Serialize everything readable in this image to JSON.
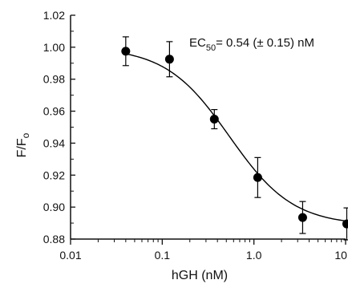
{
  "chart_data": {
    "type": "scatter",
    "xlabel": "hGH (nM)",
    "ylabel": "F/F",
    "ylabel_subscript": "o",
    "x_scale": "log",
    "xlim": [
      0.01,
      10
    ],
    "ylim": [
      0.88,
      1.02
    ],
    "x_ticks": [
      {
        "value": 0.01,
        "label": "0.01"
      },
      {
        "value": 0.1,
        "label": "0.1"
      },
      {
        "value": 1,
        "label": "1.0"
      },
      {
        "value": 10,
        "label": "10.0"
      }
    ],
    "y_ticks": [
      {
        "value": 0.88,
        "label": "0.88"
      },
      {
        "value": 0.9,
        "label": "0.90"
      },
      {
        "value": 0.92,
        "label": "0.92"
      },
      {
        "value": 0.94,
        "label": "0.94"
      },
      {
        "value": 0.96,
        "label": "0.96"
      },
      {
        "value": 0.98,
        "label": "0.98"
      },
      {
        "value": 1.0,
        "label": "1.00"
      },
      {
        "value": 1.02,
        "label": "1.02"
      }
    ],
    "points": [
      {
        "x": 0.04,
        "y": 0.9975,
        "err": 0.009
      },
      {
        "x": 0.12,
        "y": 0.9925,
        "err": 0.011
      },
      {
        "x": 0.37,
        "y": 0.955,
        "err": 0.006
      },
      {
        "x": 1.1,
        "y": 0.9185,
        "err": 0.0125
      },
      {
        "x": 3.4,
        "y": 0.8935,
        "err": 0.01
      },
      {
        "x": 10.3,
        "y": 0.8895,
        "err": 0.01
      }
    ],
    "fit_curve": {
      "model": "logistic",
      "top": 1.0,
      "bottom": 0.8885,
      "ec50": 0.54,
      "hill": 1.25
    },
    "annotation": {
      "prefix": "EC",
      "subscript": "50",
      "suffix": "= 0.54 (± 0.15) nM"
    },
    "grid": false,
    "legend": "none",
    "colors": {
      "marker": "#000000",
      "line": "#000000"
    }
  }
}
